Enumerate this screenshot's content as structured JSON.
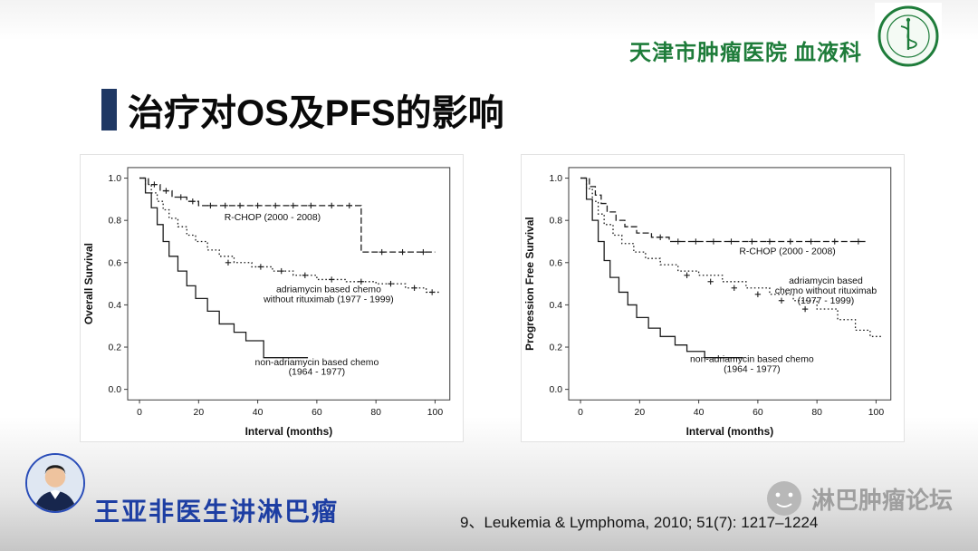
{
  "header": {
    "hospital_name": "天津市肿瘤医院 血液科"
  },
  "title": {
    "text": "治疗对OS及PFS的影响"
  },
  "footer": {
    "presenter": "王亚非医生讲淋巴瘤",
    "citation": "9、Leukemia & Lymphoma, 2010; 51(7): 1217–1224",
    "watermark": "淋巴肿瘤论坛"
  },
  "colors": {
    "accent_bar": "#1f3864",
    "hospital_green": "#1e7c3a",
    "presenter_blue": "#1d3ea3",
    "watermark_gray": "#9f9f9f",
    "curve_color": "#1c1c1c"
  },
  "chart_data": [
    {
      "type": "line",
      "subtype": "kaplan-meier-step",
      "title": "",
      "xlabel": "Interval (months)",
      "ylabel": "Overall Survival",
      "xlim": [
        0,
        100
      ],
      "ylim": [
        0.0,
        1.0
      ],
      "xticks": [
        0,
        20,
        40,
        60,
        80,
        100
      ],
      "xticklabels": [
        "0",
        "20",
        "40",
        "60",
        "80",
        "100"
      ],
      "yticks": [
        0.0,
        0.2,
        0.4,
        0.6,
        0.8,
        1.0
      ],
      "yticklabels": [
        "0.0",
        "0.2",
        "0.4",
        "0.6",
        "0.8",
        "1.0"
      ],
      "grid": false,
      "legend_position": "in-plot-annotations",
      "series": [
        {
          "name": "R-CHOP (2000 - 2008)",
          "style": "dashed",
          "marker": "plus",
          "points": [
            [
              0,
              1.0
            ],
            [
              3,
              0.97
            ],
            [
              7,
              0.94
            ],
            [
              11,
              0.91
            ],
            [
              16,
              0.89
            ],
            [
              20,
              0.87
            ],
            [
              75,
              0.65
            ],
            [
              100,
              0.65
            ]
          ],
          "censors": [
            [
              5,
              0.97
            ],
            [
              9,
              0.94
            ],
            [
              14,
              0.91
            ],
            [
              18,
              0.89
            ],
            [
              24,
              0.87
            ],
            [
              29,
              0.87
            ],
            [
              34,
              0.87
            ],
            [
              40,
              0.87
            ],
            [
              46,
              0.87
            ],
            [
              52,
              0.87
            ],
            [
              58,
              0.87
            ],
            [
              65,
              0.87
            ],
            [
              71,
              0.87
            ],
            [
              82,
              0.65
            ],
            [
              89,
              0.65
            ],
            [
              96,
              0.65
            ]
          ]
        },
        {
          "name": "adriamycin based chemo without rituximab (1977 - 1999)",
          "style": "dotted",
          "marker": "plus",
          "points": [
            [
              0,
              1.0
            ],
            [
              2,
              0.97
            ],
            [
              4,
              0.93
            ],
            [
              6,
              0.89
            ],
            [
              8,
              0.85
            ],
            [
              10,
              0.81
            ],
            [
              13,
              0.77
            ],
            [
              16,
              0.73
            ],
            [
              19,
              0.7
            ],
            [
              23,
              0.66
            ],
            [
              27,
              0.63
            ],
            [
              32,
              0.6
            ],
            [
              38,
              0.58
            ],
            [
              45,
              0.56
            ],
            [
              52,
              0.54
            ],
            [
              60,
              0.52
            ],
            [
              70,
              0.51
            ],
            [
              80,
              0.5
            ],
            [
              90,
              0.48
            ],
            [
              97,
              0.46
            ],
            [
              102,
              0.46
            ]
          ],
          "censors": [
            [
              30,
              0.6
            ],
            [
              41,
              0.58
            ],
            [
              48,
              0.56
            ],
            [
              56,
              0.54
            ],
            [
              65,
              0.52
            ],
            [
              75,
              0.51
            ],
            [
              85,
              0.5
            ],
            [
              93,
              0.48
            ],
            [
              99,
              0.46
            ]
          ]
        },
        {
          "name": "non-adriamycin based chemo (1964 - 1977)",
          "style": "solid",
          "marker": "none",
          "points": [
            [
              0,
              1.0
            ],
            [
              2,
              0.93
            ],
            [
              4,
              0.86
            ],
            [
              6,
              0.78
            ],
            [
              8,
              0.7
            ],
            [
              10,
              0.63
            ],
            [
              13,
              0.56
            ],
            [
              16,
              0.49
            ],
            [
              19,
              0.43
            ],
            [
              23,
              0.37
            ],
            [
              27,
              0.31
            ],
            [
              32,
              0.27
            ],
            [
              36,
              0.23
            ],
            [
              42,
              0.15
            ],
            [
              57,
              0.15
            ]
          ],
          "censors": []
        }
      ],
      "annotations": [
        {
          "x": 45,
          "y": 0.8,
          "lines": [
            "R-CHOP (2000 - 2008)"
          ]
        },
        {
          "x": 64,
          "y": 0.46,
          "lines": [
            "adriamycin based chemo",
            "without rituximab (1977 - 1999)"
          ]
        },
        {
          "x": 60,
          "y": 0.115,
          "lines": [
            "non-adriamycin based chemo",
            "(1964 - 1977)"
          ]
        }
      ]
    },
    {
      "type": "line",
      "subtype": "kaplan-meier-step",
      "title": "",
      "xlabel": "Interval (months)",
      "ylabel": "Progression Free Survival",
      "xlim": [
        0,
        100
      ],
      "ylim": [
        0.0,
        1.0
      ],
      "xticks": [
        0,
        20,
        40,
        60,
        80,
        100
      ],
      "xticklabels": [
        "0",
        "20",
        "40",
        "60",
        "80",
        "100"
      ],
      "yticks": [
        0.0,
        0.2,
        0.4,
        0.6,
        0.8,
        1.0
      ],
      "yticklabels": [
        "0.0",
        "0.2",
        "0.4",
        "0.6",
        "0.8",
        "1.0"
      ],
      "grid": false,
      "legend_position": "in-plot-annotations",
      "series": [
        {
          "name": "R-CHOP (2000 - 2008)",
          "style": "dashed",
          "marker": "plus",
          "points": [
            [
              0,
              1.0
            ],
            [
              3,
              0.96
            ],
            [
              5,
              0.92
            ],
            [
              7,
              0.88
            ],
            [
              9,
              0.84
            ],
            [
              12,
              0.8
            ],
            [
              15,
              0.77
            ],
            [
              19,
              0.74
            ],
            [
              24,
              0.72
            ],
            [
              30,
              0.7
            ],
            [
              97,
              0.7
            ]
          ],
          "censors": [
            [
              27,
              0.72
            ],
            [
              33,
              0.7
            ],
            [
              39,
              0.7
            ],
            [
              45,
              0.7
            ],
            [
              51,
              0.7
            ],
            [
              58,
              0.7
            ],
            [
              64,
              0.7
            ],
            [
              71,
              0.7
            ],
            [
              78,
              0.7
            ],
            [
              86,
              0.7
            ],
            [
              94,
              0.7
            ]
          ]
        },
        {
          "name": "adriamycin based chemo without rituximab (1977 - 1999)",
          "style": "dotted",
          "marker": "plus",
          "points": [
            [
              0,
              1.0
            ],
            [
              2,
              0.95
            ],
            [
              4,
              0.89
            ],
            [
              6,
              0.83
            ],
            [
              8,
              0.78
            ],
            [
              11,
              0.73
            ],
            [
              14,
              0.69
            ],
            [
              18,
              0.65
            ],
            [
              22,
              0.62
            ],
            [
              27,
              0.59
            ],
            [
              33,
              0.56
            ],
            [
              40,
              0.54
            ],
            [
              48,
              0.51
            ],
            [
              56,
              0.48
            ],
            [
              64,
              0.45
            ],
            [
              72,
              0.42
            ],
            [
              80,
              0.38
            ],
            [
              87,
              0.33
            ],
            [
              93,
              0.28
            ],
            [
              98,
              0.25
            ],
            [
              102,
              0.25
            ]
          ],
          "censors": [
            [
              36,
              0.54
            ],
            [
              44,
              0.51
            ],
            [
              52,
              0.48
            ],
            [
              60,
              0.45
            ],
            [
              68,
              0.42
            ],
            [
              76,
              0.38
            ]
          ]
        },
        {
          "name": "non-adriamycin based chemo (1964 - 1977)",
          "style": "solid",
          "marker": "none",
          "points": [
            [
              0,
              1.0
            ],
            [
              2,
              0.9
            ],
            [
              4,
              0.8
            ],
            [
              6,
              0.7
            ],
            [
              8,
              0.61
            ],
            [
              10,
              0.53
            ],
            [
              13,
              0.46
            ],
            [
              16,
              0.4
            ],
            [
              19,
              0.34
            ],
            [
              23,
              0.29
            ],
            [
              27,
              0.25
            ],
            [
              32,
              0.21
            ],
            [
              36,
              0.18
            ],
            [
              42,
              0.15
            ],
            [
              55,
              0.15
            ]
          ],
          "censors": []
        }
      ],
      "annotations": [
        {
          "x": 70,
          "y": 0.64,
          "lines": [
            "R-CHOP (2000 - 2008)"
          ]
        },
        {
          "x": 83,
          "y": 0.5,
          "lines": [
            "adriamycin based",
            "chemo without rituximab",
            "(1977 - 1999)"
          ]
        },
        {
          "x": 58,
          "y": 0.13,
          "lines": [
            "non-adriamycin based chemo",
            "(1964 - 1977)"
          ]
        }
      ]
    }
  ]
}
